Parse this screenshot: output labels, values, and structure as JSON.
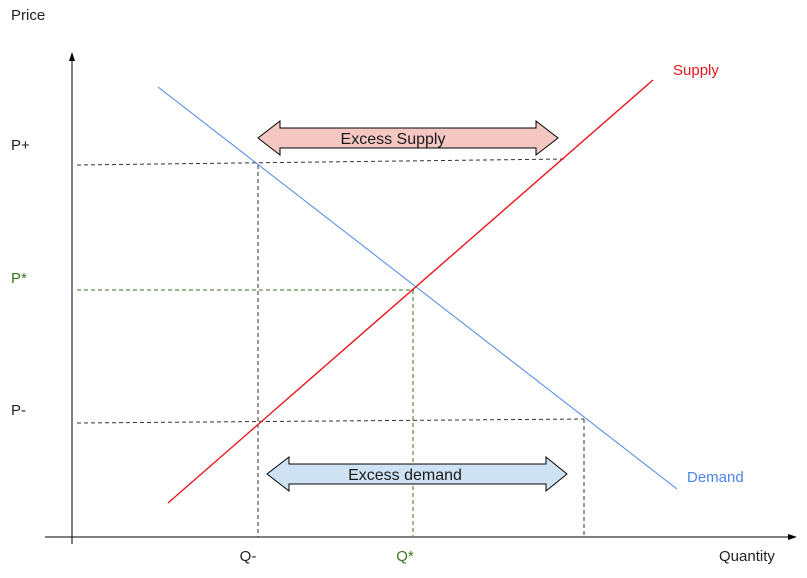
{
  "axes": {
    "y_label": "Price",
    "x_label": "Quantity"
  },
  "price_labels": {
    "p_high": "P+",
    "p_star": "P*",
    "p_low": "P-"
  },
  "quantity_labels": {
    "q_low": "Q-",
    "q_star": "Q*"
  },
  "curves": {
    "supply": "Supply",
    "demand": "Demand"
  },
  "annotations": {
    "excess_supply": "Excess Supply",
    "excess_demand": "Excess demand"
  },
  "colors": {
    "supply": "#e8161b",
    "demand": "#4a86e8",
    "equilibrium": "#38761d",
    "excess_supply_fill": "#f4c7c3",
    "excess_demand_fill": "#cfe2f3",
    "axis": "#000000",
    "dashed": "#333333"
  }
}
